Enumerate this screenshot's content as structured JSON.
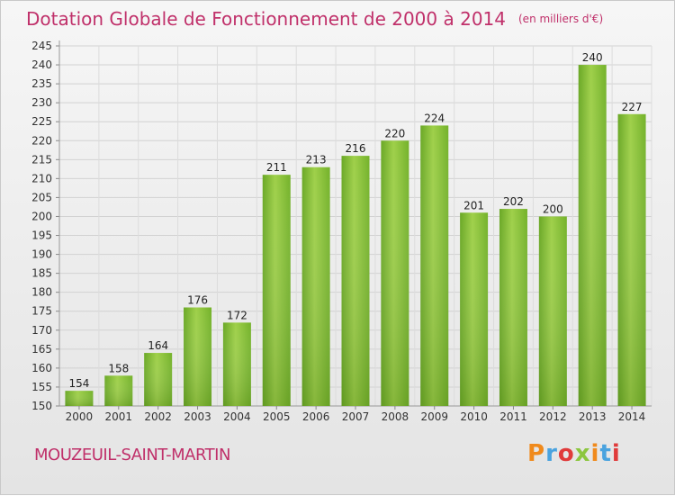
{
  "chart_data": {
    "type": "bar",
    "title": "Dotation Globale de Fonctionnement de 2000 à 2014",
    "unit": "(en milliers d'€)",
    "categories": [
      "2000",
      "2001",
      "2002",
      "2003",
      "2004",
      "2005",
      "2006",
      "2007",
      "2008",
      "2009",
      "2010",
      "2011",
      "2012",
      "2013",
      "2014"
    ],
    "values": [
      154,
      158,
      164,
      176,
      172,
      211,
      213,
      216,
      220,
      224,
      201,
      202,
      200,
      240,
      227
    ],
    "ylim": [
      150,
      245
    ],
    "yticks": [
      150,
      155,
      160,
      165,
      170,
      175,
      180,
      185,
      190,
      195,
      200,
      205,
      210,
      215,
      220,
      225,
      230,
      235,
      240,
      245
    ],
    "grid": true,
    "xlabel": "",
    "ylabel": "",
    "bar_color": "#7cb82f",
    "bar_color_light": "#a6d64e"
  },
  "footer": {
    "commune": "MOUZEUIL-SAINT-MARTIN",
    "logo_letters": [
      "P",
      "r",
      "o",
      "x",
      "i",
      "t",
      "i"
    ],
    "logo_colors": [
      "#f08a1c",
      "#4aa3df",
      "#e03b3b",
      "#8cc63f",
      "#f08a1c",
      "#4aa3df",
      "#e03b3b"
    ]
  },
  "colors": {
    "title": "#c0306a"
  }
}
